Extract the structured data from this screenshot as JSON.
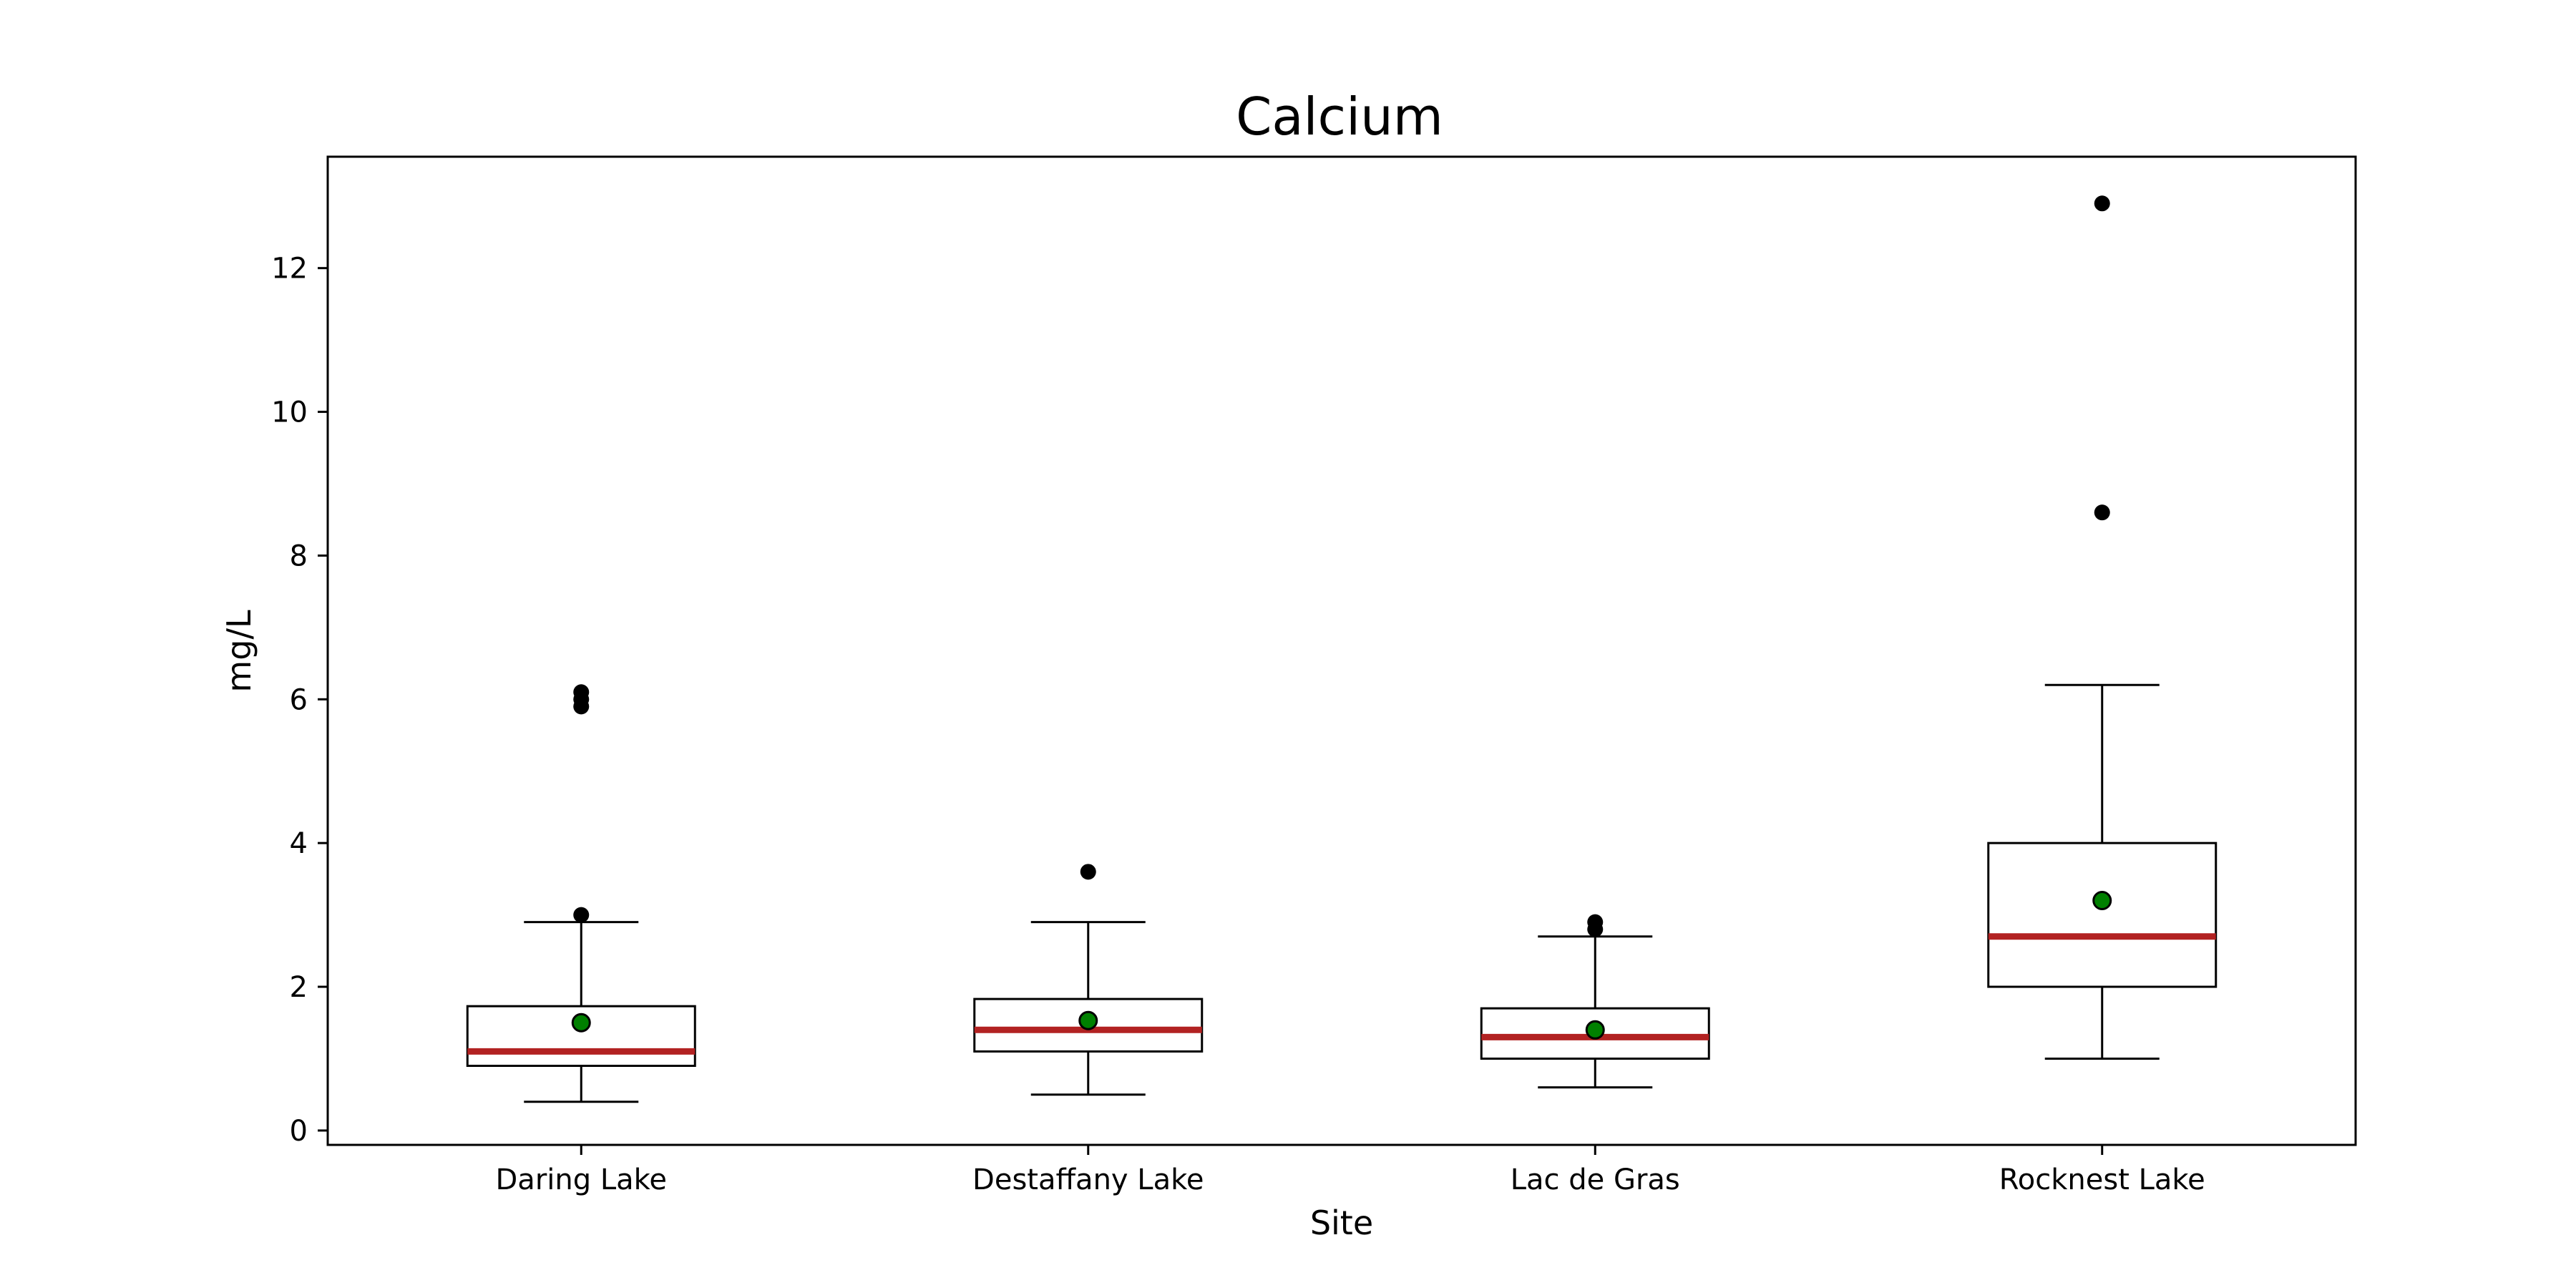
{
  "chart_data": {
    "type": "box",
    "title": "Calcium",
    "xlabel": "Site",
    "ylabel": "mg/L",
    "ylim": [
      -0.2,
      13.55
    ],
    "yticks": [
      0,
      2,
      4,
      6,
      8,
      10,
      12
    ],
    "grid": false,
    "legend": "none",
    "colors": {
      "box_edge": "#000000",
      "median": "#b22222",
      "mean_marker": "#008000",
      "outlier": "#000000"
    },
    "categories": [
      "Daring Lake",
      "Destaffany Lake",
      "Lac de Gras",
      "Rocknest Lake"
    ],
    "boxes": [
      {
        "site": "Daring Lake",
        "whisker_low": 0.4,
        "q1": 0.9,
        "median": 1.1,
        "q3": 1.73,
        "whisker_high": 2.9,
        "mean": 1.5,
        "outliers": [
          3.0,
          5.9,
          6.0,
          6.1
        ]
      },
      {
        "site": "Destaffany Lake",
        "whisker_low": 0.5,
        "q1": 1.1,
        "median": 1.4,
        "q3": 1.83,
        "whisker_high": 2.9,
        "mean": 1.53,
        "outliers": [
          3.6
        ]
      },
      {
        "site": "Lac de Gras",
        "whisker_low": 0.6,
        "q1": 1.0,
        "median": 1.3,
        "q3": 1.7,
        "whisker_high": 2.7,
        "mean": 1.4,
        "outliers": [
          2.8,
          2.9
        ]
      },
      {
        "site": "Rocknest Lake",
        "whisker_low": 1.0,
        "q1": 2.0,
        "median": 2.7,
        "q3": 4.0,
        "whisker_high": 6.2,
        "mean": 3.2,
        "outliers": [
          8.6,
          12.9
        ]
      }
    ]
  }
}
